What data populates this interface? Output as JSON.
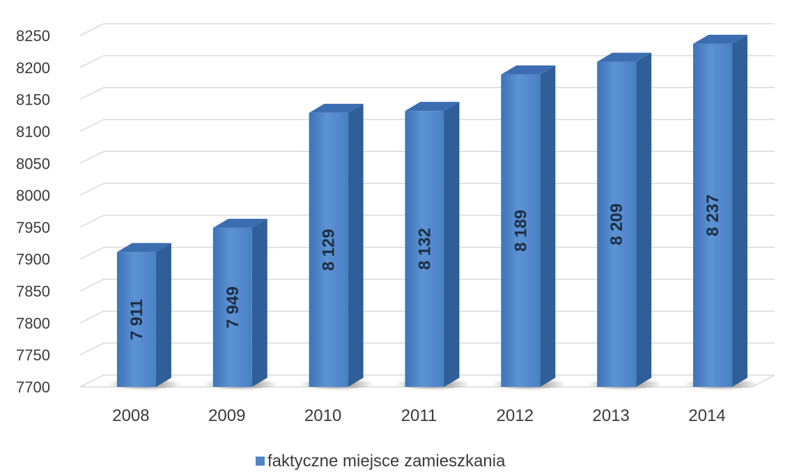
{
  "chart_data": {
    "type": "bar",
    "style": "3d-column",
    "categories": [
      "2008",
      "2009",
      "2010",
      "2011",
      "2012",
      "2013",
      "2014"
    ],
    "series": [
      {
        "name": "faktyczne miejsce zamieszkania",
        "values": [
          7911,
          7949,
          8129,
          8132,
          8189,
          8209,
          8237
        ],
        "data_labels": [
          "7 911",
          "7 949",
          "8 129",
          "8 132",
          "8 189",
          "8 209",
          "8 237"
        ],
        "color": "#4f86c6"
      }
    ],
    "yticks": [
      "7700",
      "7750",
      "7800",
      "7850",
      "7900",
      "7950",
      "8000",
      "8050",
      "8100",
      "8150",
      "8200",
      "8250"
    ],
    "ylim": [
      7700,
      8250
    ],
    "grid": true,
    "legend_position": "bottom"
  }
}
